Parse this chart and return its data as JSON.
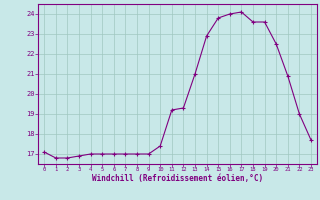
{
  "x": [
    0,
    1,
    2,
    3,
    4,
    5,
    6,
    7,
    8,
    9,
    10,
    11,
    12,
    13,
    14,
    15,
    16,
    17,
    18,
    19,
    20,
    21,
    22,
    23
  ],
  "y": [
    17.1,
    16.8,
    16.8,
    16.9,
    17.0,
    17.0,
    17.0,
    17.0,
    17.0,
    17.0,
    17.4,
    19.2,
    19.3,
    21.0,
    22.9,
    23.8,
    24.0,
    24.1,
    23.6,
    23.6,
    22.5,
    20.9,
    19.0,
    17.7
  ],
  "line_color": "#800080",
  "marker": "+",
  "marker_color": "#800080",
  "bg_color": "#c8e8e8",
  "grid_color": "#a0c8c0",
  "xlabel": "Windchill (Refroidissement éolien,°C)",
  "xlabel_color": "#800080",
  "tick_color": "#800080",
  "spine_color": "#800080",
  "ylim": [
    16.5,
    24.5
  ],
  "xlim": [
    -0.5,
    23.5
  ],
  "yticks": [
    17,
    18,
    19,
    20,
    21,
    22,
    23,
    24
  ],
  "xticks": [
    0,
    1,
    2,
    3,
    4,
    5,
    6,
    7,
    8,
    9,
    10,
    11,
    12,
    13,
    14,
    15,
    16,
    17,
    18,
    19,
    20,
    21,
    22,
    23
  ]
}
